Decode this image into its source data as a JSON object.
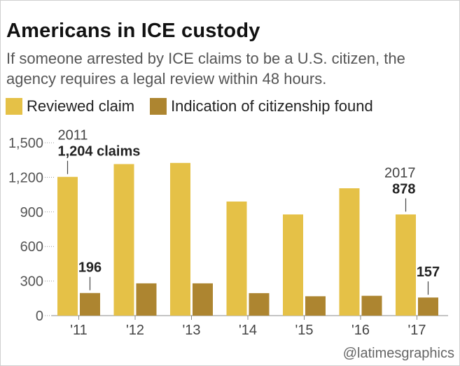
{
  "chart_data": {
    "type": "bar",
    "title": "Americans in ICE custody",
    "subtitle": "If someone arrested by ICE claims to be a U.S. citizen, the agency requires a legal review within 48 hours.",
    "categories": [
      "'11",
      "'12",
      "'13",
      "'14",
      "'15",
      "'16",
      "'17"
    ],
    "series": [
      {
        "name": "Reviewed claim",
        "color": "#e5c147",
        "values": [
          1204,
          1315,
          1325,
          990,
          878,
          1105,
          878
        ]
      },
      {
        "name": "Indication of citizenship found",
        "color": "#ad8530",
        "values": [
          196,
          280,
          280,
          195,
          168,
          172,
          157
        ]
      }
    ],
    "ylim": [
      0,
      1500
    ],
    "yticks": [
      0,
      300,
      600,
      900,
      1200,
      1500
    ],
    "ytick_labels": [
      "0",
      "300",
      "600",
      "900",
      "1,200",
      "1,500"
    ],
    "xlabel": "",
    "ylabel": "",
    "grid": false,
    "legend_position": "top-left",
    "annotations": [
      {
        "year": "2011",
        "label": "1,204 claims",
        "category_index": 0,
        "series_index": 0
      },
      {
        "label": "196",
        "category_index": 0,
        "series_index": 1
      },
      {
        "year": "2017",
        "label": "878",
        "category_index": 6,
        "series_index": 0
      },
      {
        "label": "157",
        "category_index": 6,
        "series_index": 1
      }
    ]
  },
  "credit": "@latimesgraphics"
}
